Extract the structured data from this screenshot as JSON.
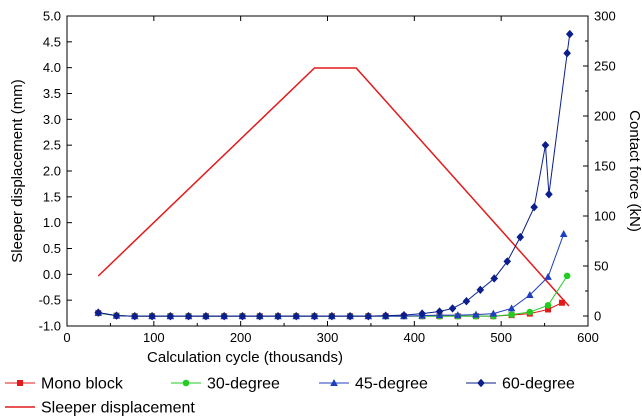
{
  "chart_data": {
    "type": "line",
    "xlabel": "Calculation cycle (thousands)",
    "ylabel": "Sleeper displacement (mm)",
    "y2label": "Contact force (kN)",
    "xlim": [
      0,
      600
    ],
    "ylim": [
      -1.0,
      5.0
    ],
    "y2lim": [
      -10,
      300
    ],
    "x_ticks": [
      0,
      100,
      200,
      300,
      400,
      500,
      600
    ],
    "y_ticks": [
      -1.0,
      -0.5,
      0.0,
      0.5,
      1.0,
      1.5,
      2.0,
      2.5,
      3.0,
      3.5,
      4.0,
      4.5,
      5.0
    ],
    "y_tick_labels": [
      "-1.0",
      "-0.5",
      "0.0",
      "0.5",
      "1.0",
      "1.5",
      "2.0",
      "2.5",
      "3.0",
      "3.5",
      "4.0",
      "4.5",
      "5.0"
    ],
    "y2_ticks": [
      0,
      50,
      100,
      150,
      200,
      250,
      300
    ],
    "grid": false,
    "legend_position": "bottom",
    "series": [
      {
        "name": "Sleeper displacement",
        "axis": "y2",
        "color": "#e31a1c",
        "marker": "none",
        "x": [
          36,
          285,
          333,
          578
        ],
        "y": [
          40,
          248,
          248,
          10
        ]
      },
      {
        "name": "Mono block",
        "axis": "y",
        "color": "#e31a1c",
        "marker": "square",
        "x": [
          36,
          57,
          78,
          98,
          119,
          140,
          160,
          181,
          202,
          222,
          243,
          264,
          285,
          305,
          326,
          347,
          367,
          388,
          409,
          429,
          450,
          471,
          491,
          512,
          533,
          554,
          570
        ],
        "y": [
          -0.75,
          -0.8,
          -0.81,
          -0.81,
          -0.81,
          -0.81,
          -0.81,
          -0.81,
          -0.81,
          -0.81,
          -0.81,
          -0.81,
          -0.81,
          -0.81,
          -0.81,
          -0.81,
          -0.81,
          -0.81,
          -0.81,
          -0.81,
          -0.81,
          -0.81,
          -0.81,
          -0.79,
          -0.76,
          -0.68,
          -0.55
        ]
      },
      {
        "name": "30-degree",
        "axis": "y",
        "color": "#22cc22",
        "marker": "circle",
        "x": [
          36,
          57,
          78,
          98,
          119,
          140,
          160,
          181,
          202,
          222,
          243,
          264,
          285,
          305,
          326,
          347,
          367,
          388,
          409,
          429,
          450,
          471,
          491,
          512,
          533,
          554,
          576
        ],
        "y": [
          -0.75,
          -0.8,
          -0.81,
          -0.81,
          -0.81,
          -0.81,
          -0.81,
          -0.81,
          -0.81,
          -0.81,
          -0.81,
          -0.81,
          -0.81,
          -0.81,
          -0.81,
          -0.81,
          -0.81,
          -0.81,
          -0.81,
          -0.81,
          -0.81,
          -0.81,
          -0.81,
          -0.78,
          -0.73,
          -0.6,
          -0.03
        ]
      },
      {
        "name": "45-degree",
        "axis": "y",
        "color": "#1f3fbf",
        "marker": "triangle",
        "x": [
          36,
          57,
          78,
          98,
          119,
          140,
          160,
          181,
          202,
          222,
          243,
          264,
          285,
          305,
          326,
          347,
          367,
          388,
          409,
          429,
          450,
          471,
          491,
          512,
          533,
          554,
          572
        ],
        "y": [
          -0.74,
          -0.8,
          -0.81,
          -0.81,
          -0.81,
          -0.81,
          -0.81,
          -0.81,
          -0.81,
          -0.81,
          -0.81,
          -0.81,
          -0.81,
          -0.81,
          -0.81,
          -0.81,
          -0.81,
          -0.81,
          -0.8,
          -0.79,
          -0.79,
          -0.78,
          -0.76,
          -0.66,
          -0.4,
          -0.05,
          0.78
        ]
      },
      {
        "name": "60-degree",
        "axis": "y",
        "color": "#0a1e8c",
        "marker": "diamond",
        "x": [
          36,
          57,
          78,
          98,
          119,
          140,
          160,
          181,
          202,
          222,
          243,
          264,
          285,
          305,
          326,
          347,
          367,
          388,
          409,
          429,
          444,
          460,
          476,
          492,
          507,
          522,
          538,
          551,
          555,
          576,
          579
        ],
        "y": [
          -0.74,
          -0.8,
          -0.81,
          -0.81,
          -0.81,
          -0.81,
          -0.81,
          -0.81,
          -0.81,
          -0.81,
          -0.81,
          -0.81,
          -0.81,
          -0.81,
          -0.81,
          -0.81,
          -0.8,
          -0.79,
          -0.76,
          -0.72,
          -0.66,
          -0.52,
          -0.3,
          -0.08,
          0.25,
          0.72,
          1.3,
          2.5,
          1.55,
          4.28,
          4.65
        ]
      }
    ],
    "legend": [
      {
        "label": "Mono block",
        "series": 1
      },
      {
        "label": "30-degree",
        "series": 2
      },
      {
        "label": "45-degree",
        "series": 3
      },
      {
        "label": "60-degree",
        "series": 4
      },
      {
        "label": "Sleeper displacement",
        "series": 0
      }
    ]
  }
}
